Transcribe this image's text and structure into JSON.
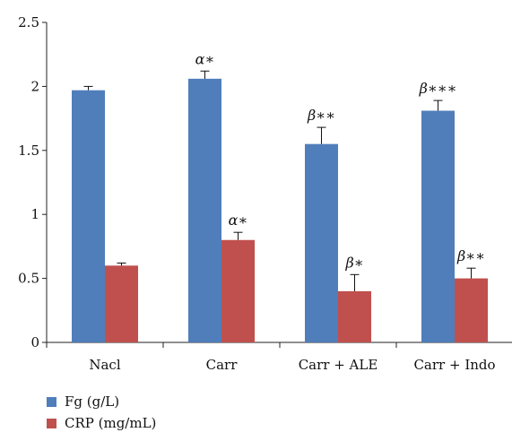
{
  "chart_data": {
    "type": "bar",
    "categories": [
      "Nacl",
      "Carr",
      "Carr + ALE",
      "Carr + Indo"
    ],
    "series": [
      {
        "name": "Fg (g/L)",
        "color": "#4f7ebb",
        "values": [
          1.97,
          2.06,
          1.55,
          1.81
        ],
        "errors": [
          0.03,
          0.06,
          0.13,
          0.08
        ],
        "annotations": [
          "",
          "α∗",
          "β∗∗",
          "β∗∗∗"
        ]
      },
      {
        "name": "CRP (mg/mL)",
        "color": "#c0504d",
        "values": [
          0.6,
          0.8,
          0.4,
          0.5
        ],
        "errors": [
          0.02,
          0.06,
          0.13,
          0.08
        ],
        "annotations": [
          "",
          "α∗",
          "β∗",
          "β∗∗"
        ]
      }
    ],
    "ylim": [
      0,
      2.5
    ],
    "yticks": [
      "0",
      "0.5",
      "1",
      "1.5",
      "2",
      "2.5"
    ],
    "title": "",
    "xlabel": "",
    "ylabel": "",
    "legend_position": "bottom-left",
    "grid": false
  }
}
